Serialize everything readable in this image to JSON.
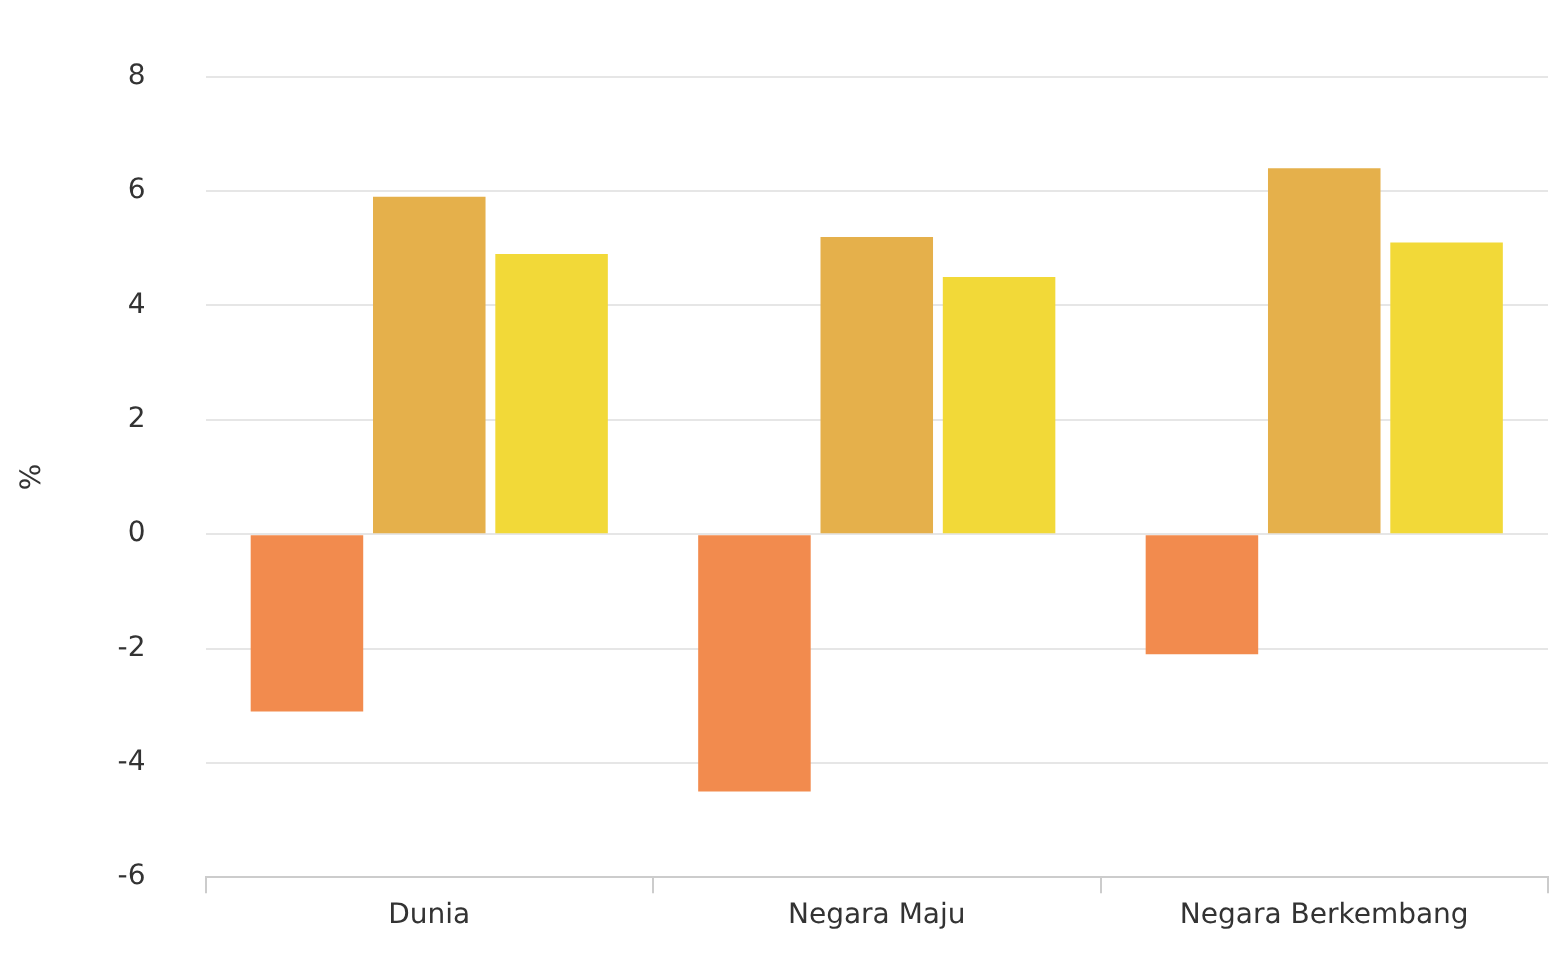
{
  "chart_data": {
    "type": "bar",
    "ylabel": "%",
    "categories": [
      "Dunia",
      "Negara Maju",
      "Negara Berkembang"
    ],
    "series": [
      {
        "color": "#f28b4e",
        "values": [
          -3.1,
          -4.5,
          -2.1
        ]
      },
      {
        "color": "#e5b04b",
        "values": [
          5.9,
          5.2,
          6.4
        ]
      },
      {
        "color": "#f2d938",
        "values": [
          4.9,
          4.5,
          5.1
        ]
      }
    ],
    "ylim": [
      -6,
      8
    ],
    "yticks": [
      -6,
      -4,
      -2,
      0,
      2,
      4,
      6,
      8
    ],
    "grid": "y",
    "legend": false
  }
}
